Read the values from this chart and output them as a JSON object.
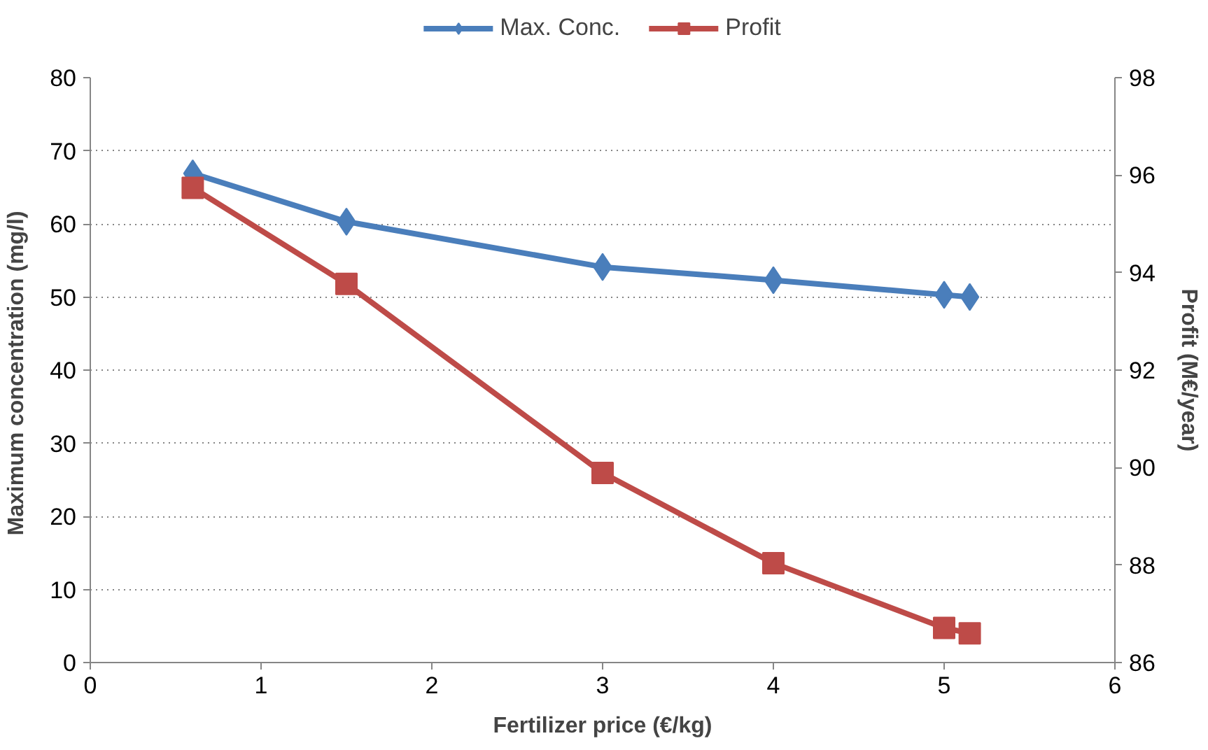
{
  "chart_data": {
    "type": "line",
    "xlabel": "Fertilizer price (€/kg)",
    "ylabel": "Maximum concentration  (mg/l)",
    "y2label": "Profit (M€/year)",
    "xlim": [
      0,
      6
    ],
    "xticks": [
      0,
      1,
      2,
      3,
      4,
      5,
      6
    ],
    "ylim": [
      0,
      80
    ],
    "yticks": [
      0,
      10,
      20,
      30,
      40,
      50,
      60,
      70,
      80
    ],
    "y2lim": [
      86,
      98
    ],
    "y2ticks": [
      86,
      88,
      90,
      92,
      94,
      96,
      98
    ],
    "grid": "y",
    "legend": "top",
    "series": [
      {
        "name": "Max. Conc.",
        "color": "#4a7ebb",
        "marker": "diamond",
        "x": [
          0.6,
          1.5,
          3,
          4,
          5,
          5.15
        ],
        "values": [
          66.9,
          60.3,
          54.1,
          52.3,
          50.3,
          50.0
        ]
      },
      {
        "name": "Profit",
        "color": "#be4b48",
        "marker": "square",
        "axis": "y2",
        "x": [
          0.6,
          1.5,
          3,
          4,
          5,
          5.15
        ],
        "values": [
          95.74,
          93.77,
          89.89,
          88.04,
          86.71,
          86.6
        ]
      }
    ]
  }
}
